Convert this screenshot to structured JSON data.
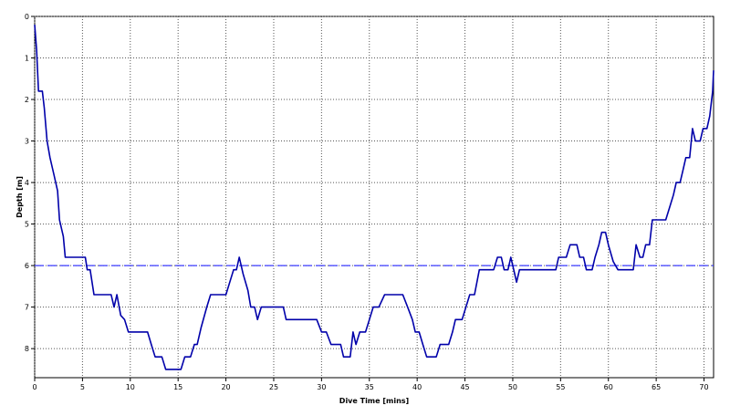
{
  "chart_data": {
    "type": "line",
    "xlabel": "Dive Time [mins]",
    "ylabel": "Depth [m]",
    "xlim": [
      0,
      71
    ],
    "ylim": [
      0,
      8.7
    ],
    "y_inverted": true,
    "grid": true,
    "x_ticks": [
      "0",
      "5",
      "10",
      "15",
      "20",
      "25",
      "30",
      "35",
      "40",
      "45",
      "50",
      "55",
      "60",
      "65",
      "70"
    ],
    "y_ticks": [
      "0",
      "1",
      "2",
      "3",
      "4",
      "5",
      "6",
      "7",
      "8"
    ],
    "reference_line": {
      "y": 6,
      "style": "dashed",
      "color": "#3b3bff"
    },
    "series": [
      {
        "color": "#0000aa",
        "points": [
          [
            0,
            0.2
          ],
          [
            0.2,
            0.8
          ],
          [
            0.4,
            1.8
          ],
          [
            0.8,
            1.8
          ],
          [
            1.0,
            2.2
          ],
          [
            1.3,
            3.0
          ],
          [
            1.6,
            3.4
          ],
          [
            2.0,
            3.8
          ],
          [
            2.4,
            4.2
          ],
          [
            2.6,
            4.9
          ],
          [
            3.0,
            5.3
          ],
          [
            3.2,
            5.8
          ],
          [
            5.3,
            5.8
          ],
          [
            5.5,
            6.1
          ],
          [
            5.8,
            6.1
          ],
          [
            6.2,
            6.7
          ],
          [
            8.0,
            6.7
          ],
          [
            8.3,
            7.0
          ],
          [
            8.6,
            6.7
          ],
          [
            9.0,
            7.2
          ],
          [
            9.4,
            7.3
          ],
          [
            9.8,
            7.6
          ],
          [
            11.8,
            7.6
          ],
          [
            12.2,
            7.9
          ],
          [
            12.6,
            8.2
          ],
          [
            13.3,
            8.2
          ],
          [
            13.7,
            8.5
          ],
          [
            15.3,
            8.5
          ],
          [
            15.7,
            8.2
          ],
          [
            16.3,
            8.2
          ],
          [
            16.7,
            7.9
          ],
          [
            17.0,
            7.9
          ],
          [
            17.4,
            7.5
          ],
          [
            18.0,
            7.0
          ],
          [
            18.4,
            6.7
          ],
          [
            20.0,
            6.7
          ],
          [
            20.4,
            6.4
          ],
          [
            20.8,
            6.1
          ],
          [
            21.1,
            6.1
          ],
          [
            21.4,
            5.8
          ],
          [
            21.8,
            6.2
          ],
          [
            22.3,
            6.6
          ],
          [
            22.6,
            7.0
          ],
          [
            23.0,
            7.0
          ],
          [
            23.3,
            7.3
          ],
          [
            23.7,
            7.0
          ],
          [
            26.0,
            7.0
          ],
          [
            26.3,
            7.3
          ],
          [
            29.5,
            7.3
          ],
          [
            30.0,
            7.6
          ],
          [
            30.5,
            7.6
          ],
          [
            31.0,
            7.9
          ],
          [
            32.0,
            7.9
          ],
          [
            32.3,
            8.2
          ],
          [
            33.0,
            8.2
          ],
          [
            33.3,
            7.6
          ],
          [
            33.6,
            7.9
          ],
          [
            34.0,
            7.6
          ],
          [
            34.6,
            7.6
          ],
          [
            35.0,
            7.3
          ],
          [
            35.4,
            7.0
          ],
          [
            36.0,
            7.0
          ],
          [
            36.6,
            6.7
          ],
          [
            38.5,
            6.7
          ],
          [
            39.0,
            7.0
          ],
          [
            39.5,
            7.3
          ],
          [
            39.8,
            7.6
          ],
          [
            40.2,
            7.6
          ],
          [
            40.6,
            7.9
          ],
          [
            41.0,
            8.2
          ],
          [
            42.0,
            8.2
          ],
          [
            42.4,
            7.9
          ],
          [
            43.3,
            7.9
          ],
          [
            43.7,
            7.6
          ],
          [
            44.0,
            7.3
          ],
          [
            44.7,
            7.3
          ],
          [
            45.1,
            7.0
          ],
          [
            45.5,
            6.7
          ],
          [
            46.0,
            6.7
          ],
          [
            46.5,
            6.1
          ],
          [
            48.0,
            6.1
          ],
          [
            48.4,
            5.8
          ],
          [
            48.8,
            5.8
          ],
          [
            49.1,
            6.1
          ],
          [
            49.5,
            6.1
          ],
          [
            49.8,
            5.8
          ],
          [
            50.1,
            6.1
          ],
          [
            50.4,
            6.4
          ],
          [
            50.7,
            6.1
          ],
          [
            54.5,
            6.1
          ],
          [
            54.8,
            5.8
          ],
          [
            55.6,
            5.8
          ],
          [
            56.0,
            5.5
          ],
          [
            56.7,
            5.5
          ],
          [
            57.0,
            5.8
          ],
          [
            57.4,
            5.8
          ],
          [
            57.7,
            6.1
          ],
          [
            58.3,
            6.1
          ],
          [
            58.6,
            5.8
          ],
          [
            59.0,
            5.5
          ],
          [
            59.3,
            5.2
          ],
          [
            59.7,
            5.2
          ],
          [
            60.0,
            5.5
          ],
          [
            60.5,
            5.9
          ],
          [
            61.0,
            6.1
          ],
          [
            62.6,
            6.1
          ],
          [
            62.9,
            5.5
          ],
          [
            63.3,
            5.8
          ],
          [
            63.6,
            5.8
          ],
          [
            63.9,
            5.5
          ],
          [
            64.3,
            5.5
          ],
          [
            64.6,
            4.9
          ],
          [
            66.0,
            4.9
          ],
          [
            66.4,
            4.6
          ],
          [
            66.8,
            4.3
          ],
          [
            67.1,
            4.0
          ],
          [
            67.5,
            4.0
          ],
          [
            67.8,
            3.7
          ],
          [
            68.1,
            3.4
          ],
          [
            68.5,
            3.4
          ],
          [
            68.8,
            2.7
          ],
          [
            69.1,
            3.0
          ],
          [
            69.6,
            3.0
          ],
          [
            69.9,
            2.7
          ],
          [
            70.3,
            2.7
          ],
          [
            70.6,
            2.4
          ],
          [
            70.9,
            1.8
          ],
          [
            71.0,
            1.3
          ]
        ]
      }
    ]
  }
}
